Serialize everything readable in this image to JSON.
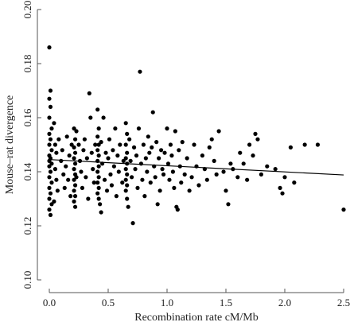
{
  "chart_data": {
    "type": "scatter",
    "xlabel": "Recombination rate cM/Mb",
    "ylabel": "Mouse–rat divergence",
    "xlim": [
      0,
      2.5
    ],
    "ylim": [
      0.1,
      0.2
    ],
    "x_ticks": [
      "0.0",
      "0.5",
      "1.0",
      "1.5",
      "2.0",
      "2.5"
    ],
    "y_ticks": [
      "0.10",
      "0.12",
      "0.14",
      "0.16",
      "0.18",
      "0.20"
    ],
    "grid": false,
    "legend": "none",
    "colors": {
      "points": "#000000",
      "axis": "#555555",
      "trend": "#000000"
    },
    "trend_line": {
      "x": [
        0,
        2.5
      ],
      "y": [
        0.1445,
        0.1388
      ]
    },
    "points": [
      {
        "x": 0.0,
        "y": 0.186
      },
      {
        "x": 0.01,
        "y": 0.17
      },
      {
        "x": 0.0,
        "y": 0.167
      },
      {
        "x": 0.01,
        "y": 0.164
      },
      {
        "x": 0.0,
        "y": 0.16
      },
      {
        "x": 0.02,
        "y": 0.156
      },
      {
        "x": 0.0,
        "y": 0.154
      },
      {
        "x": 0.01,
        "y": 0.152
      },
      {
        "x": 0.0,
        "y": 0.15
      },
      {
        "x": 0.02,
        "y": 0.148
      },
      {
        "x": 0.0,
        "y": 0.146
      },
      {
        "x": 0.01,
        "y": 0.145
      },
      {
        "x": 0.0,
        "y": 0.144
      },
      {
        "x": 0.02,
        "y": 0.143
      },
      {
        "x": 0.0,
        "y": 0.142
      },
      {
        "x": 0.01,
        "y": 0.14
      },
      {
        "x": 0.0,
        "y": 0.138
      },
      {
        "x": 0.02,
        "y": 0.136
      },
      {
        "x": 0.0,
        "y": 0.134
      },
      {
        "x": 0.01,
        "y": 0.132
      },
      {
        "x": 0.0,
        "y": 0.13
      },
      {
        "x": 0.02,
        "y": 0.128
      },
      {
        "x": 0.0,
        "y": 0.126
      },
      {
        "x": 0.01,
        "y": 0.124
      },
      {
        "x": 0.04,
        "y": 0.158
      },
      {
        "x": 0.05,
        "y": 0.15
      },
      {
        "x": 0.06,
        "y": 0.147
      },
      {
        "x": 0.05,
        "y": 0.141
      },
      {
        "x": 0.06,
        "y": 0.137
      },
      {
        "x": 0.07,
        "y": 0.133
      },
      {
        "x": 0.04,
        "y": 0.129
      },
      {
        "x": 0.08,
        "y": 0.152
      },
      {
        "x": 0.1,
        "y": 0.144
      },
      {
        "x": 0.12,
        "y": 0.139
      },
      {
        "x": 0.11,
        "y": 0.148
      },
      {
        "x": 0.13,
        "y": 0.134
      },
      {
        "x": 0.15,
        "y": 0.153
      },
      {
        "x": 0.14,
        "y": 0.142
      },
      {
        "x": 0.16,
        "y": 0.137
      },
      {
        "x": 0.17,
        "y": 0.146
      },
      {
        "x": 0.18,
        "y": 0.131
      },
      {
        "x": 0.19,
        "y": 0.15
      },
      {
        "x": 0.21,
        "y": 0.156
      },
      {
        "x": 0.22,
        "y": 0.152
      },
      {
        "x": 0.21,
        "y": 0.149
      },
      {
        "x": 0.22,
        "y": 0.147
      },
      {
        "x": 0.21,
        "y": 0.145
      },
      {
        "x": 0.22,
        "y": 0.143
      },
      {
        "x": 0.21,
        "y": 0.141
      },
      {
        "x": 0.22,
        "y": 0.139
      },
      {
        "x": 0.21,
        "y": 0.137
      },
      {
        "x": 0.22,
        "y": 0.135
      },
      {
        "x": 0.21,
        "y": 0.133
      },
      {
        "x": 0.22,
        "y": 0.131
      },
      {
        "x": 0.21,
        "y": 0.129
      },
      {
        "x": 0.22,
        "y": 0.127
      },
      {
        "x": 0.23,
        "y": 0.155
      },
      {
        "x": 0.23,
        "y": 0.138
      },
      {
        "x": 0.25,
        "y": 0.15
      },
      {
        "x": 0.26,
        "y": 0.144
      },
      {
        "x": 0.27,
        "y": 0.14
      },
      {
        "x": 0.28,
        "y": 0.134
      },
      {
        "x": 0.29,
        "y": 0.148
      },
      {
        "x": 0.3,
        "y": 0.152
      },
      {
        "x": 0.31,
        "y": 0.138
      },
      {
        "x": 0.32,
        "y": 0.145
      },
      {
        "x": 0.33,
        "y": 0.13
      },
      {
        "x": 0.34,
        "y": 0.169
      },
      {
        "x": 0.35,
        "y": 0.16
      },
      {
        "x": 0.36,
        "y": 0.147
      },
      {
        "x": 0.37,
        "y": 0.141
      },
      {
        "x": 0.38,
        "y": 0.136
      },
      {
        "x": 0.39,
        "y": 0.15
      },
      {
        "x": 0.41,
        "y": 0.163
      },
      {
        "x": 0.42,
        "y": 0.156
      },
      {
        "x": 0.41,
        "y": 0.153
      },
      {
        "x": 0.42,
        "y": 0.15
      },
      {
        "x": 0.41,
        "y": 0.148
      },
      {
        "x": 0.42,
        "y": 0.146
      },
      {
        "x": 0.41,
        "y": 0.144
      },
      {
        "x": 0.42,
        "y": 0.142
      },
      {
        "x": 0.41,
        "y": 0.14
      },
      {
        "x": 0.42,
        "y": 0.138
      },
      {
        "x": 0.41,
        "y": 0.136
      },
      {
        "x": 0.42,
        "y": 0.134
      },
      {
        "x": 0.41,
        "y": 0.132
      },
      {
        "x": 0.42,
        "y": 0.13
      },
      {
        "x": 0.43,
        "y": 0.128
      },
      {
        "x": 0.44,
        "y": 0.125
      },
      {
        "x": 0.44,
        "y": 0.151
      },
      {
        "x": 0.45,
        "y": 0.143
      },
      {
        "x": 0.46,
        "y": 0.16
      },
      {
        "x": 0.47,
        "y": 0.137
      },
      {
        "x": 0.48,
        "y": 0.147
      },
      {
        "x": 0.49,
        "y": 0.133
      },
      {
        "x": 0.5,
        "y": 0.145
      },
      {
        "x": 0.51,
        "y": 0.152
      },
      {
        "x": 0.52,
        "y": 0.139
      },
      {
        "x": 0.53,
        "y": 0.135
      },
      {
        "x": 0.54,
        "y": 0.148
      },
      {
        "x": 0.55,
        "y": 0.142
      },
      {
        "x": 0.56,
        "y": 0.156
      },
      {
        "x": 0.57,
        "y": 0.131
      },
      {
        "x": 0.58,
        "y": 0.146
      },
      {
        "x": 0.59,
        "y": 0.14
      },
      {
        "x": 0.6,
        "y": 0.15
      },
      {
        "x": 0.62,
        "y": 0.136
      },
      {
        "x": 0.63,
        "y": 0.144
      },
      {
        "x": 0.65,
        "y": 0.158
      },
      {
        "x": 0.66,
        "y": 0.154
      },
      {
        "x": 0.65,
        "y": 0.15
      },
      {
        "x": 0.66,
        "y": 0.147
      },
      {
        "x": 0.65,
        "y": 0.145
      },
      {
        "x": 0.66,
        "y": 0.143
      },
      {
        "x": 0.65,
        "y": 0.141
      },
      {
        "x": 0.66,
        "y": 0.139
      },
      {
        "x": 0.65,
        "y": 0.137
      },
      {
        "x": 0.66,
        "y": 0.135
      },
      {
        "x": 0.65,
        "y": 0.133
      },
      {
        "x": 0.66,
        "y": 0.13
      },
      {
        "x": 0.67,
        "y": 0.127
      },
      {
        "x": 0.68,
        "y": 0.152
      },
      {
        "x": 0.69,
        "y": 0.144
      },
      {
        "x": 0.7,
        "y": 0.138
      },
      {
        "x": 0.71,
        "y": 0.121
      },
      {
        "x": 0.72,
        "y": 0.149
      },
      {
        "x": 0.73,
        "y": 0.141
      },
      {
        "x": 0.74,
        "y": 0.146
      },
      {
        "x": 0.75,
        "y": 0.134
      },
      {
        "x": 0.76,
        "y": 0.156
      },
      {
        "x": 0.77,
        "y": 0.177
      },
      {
        "x": 0.78,
        "y": 0.143
      },
      {
        "x": 0.79,
        "y": 0.137
      },
      {
        "x": 0.8,
        "y": 0.15
      },
      {
        "x": 0.81,
        "y": 0.131
      },
      {
        "x": 0.82,
        "y": 0.145
      },
      {
        "x": 0.83,
        "y": 0.14
      },
      {
        "x": 0.84,
        "y": 0.153
      },
      {
        "x": 0.85,
        "y": 0.147
      },
      {
        "x": 0.86,
        "y": 0.136
      },
      {
        "x": 0.87,
        "y": 0.149
      },
      {
        "x": 0.88,
        "y": 0.162
      },
      {
        "x": 0.89,
        "y": 0.142
      },
      {
        "x": 0.9,
        "y": 0.138
      },
      {
        "x": 0.91,
        "y": 0.151
      },
      {
        "x": 0.92,
        "y": 0.128
      },
      {
        "x": 0.93,
        "y": 0.145
      },
      {
        "x": 0.94,
        "y": 0.133
      },
      {
        "x": 0.95,
        "y": 0.148
      },
      {
        "x": 0.96,
        "y": 0.141
      },
      {
        "x": 0.97,
        "y": 0.139
      },
      {
        "x": 0.98,
        "y": 0.147
      },
      {
        "x": 1.0,
        "y": 0.156
      },
      {
        "x": 1.01,
        "y": 0.143
      },
      {
        "x": 1.02,
        "y": 0.137
      },
      {
        "x": 1.03,
        "y": 0.15
      },
      {
        "x": 1.04,
        "y": 0.146
      },
      {
        "x": 1.05,
        "y": 0.14
      },
      {
        "x": 1.06,
        "y": 0.134
      },
      {
        "x": 1.07,
        "y": 0.155
      },
      {
        "x": 1.08,
        "y": 0.127
      },
      {
        "x": 1.09,
        "y": 0.126
      },
      {
        "x": 1.1,
        "y": 0.148
      },
      {
        "x": 1.11,
        "y": 0.142
      },
      {
        "x": 1.12,
        "y": 0.136
      },
      {
        "x": 1.13,
        "y": 0.151
      },
      {
        "x": 1.15,
        "y": 0.139
      },
      {
        "x": 1.17,
        "y": 0.145
      },
      {
        "x": 1.19,
        "y": 0.133
      },
      {
        "x": 1.21,
        "y": 0.138
      },
      {
        "x": 1.23,
        "y": 0.15
      },
      {
        "x": 1.25,
        "y": 0.142
      },
      {
        "x": 1.27,
        "y": 0.135
      },
      {
        "x": 1.3,
        "y": 0.146
      },
      {
        "x": 1.32,
        "y": 0.141
      },
      {
        "x": 1.34,
        "y": 0.137
      },
      {
        "x": 1.36,
        "y": 0.149
      },
      {
        "x": 1.38,
        "y": 0.152
      },
      {
        "x": 1.4,
        "y": 0.144
      },
      {
        "x": 1.42,
        "y": 0.139
      },
      {
        "x": 1.44,
        "y": 0.155
      },
      {
        "x": 1.48,
        "y": 0.14
      },
      {
        "x": 1.5,
        "y": 0.133
      },
      {
        "x": 1.52,
        "y": 0.128
      },
      {
        "x": 1.54,
        "y": 0.143
      },
      {
        "x": 1.56,
        "y": 0.141
      },
      {
        "x": 1.6,
        "y": 0.138
      },
      {
        "x": 1.62,
        "y": 0.147
      },
      {
        "x": 1.65,
        "y": 0.143
      },
      {
        "x": 1.68,
        "y": 0.137
      },
      {
        "x": 1.7,
        "y": 0.15
      },
      {
        "x": 1.73,
        "y": 0.146
      },
      {
        "x": 1.75,
        "y": 0.154
      },
      {
        "x": 1.77,
        "y": 0.152
      },
      {
        "x": 1.8,
        "y": 0.139
      },
      {
        "x": 1.85,
        "y": 0.142
      },
      {
        "x": 1.92,
        "y": 0.141
      },
      {
        "x": 1.96,
        "y": 0.134
      },
      {
        "x": 1.98,
        "y": 0.132
      },
      {
        "x": 2.0,
        "y": 0.138
      },
      {
        "x": 2.05,
        "y": 0.149
      },
      {
        "x": 2.08,
        "y": 0.136
      },
      {
        "x": 2.17,
        "y": 0.15
      },
      {
        "x": 2.28,
        "y": 0.15
      },
      {
        "x": 2.5,
        "y": 0.126
      }
    ]
  }
}
